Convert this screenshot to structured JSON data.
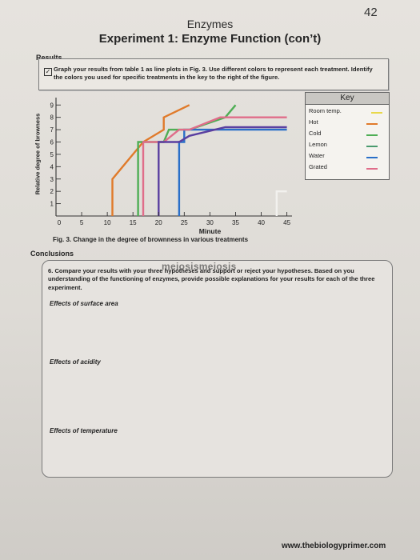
{
  "page_number": "42",
  "header_title": "Enzymes",
  "experiment_title": "Experiment 1: Enzyme Function (con’t)",
  "results": {
    "label": "Results",
    "checkbox_mark": "✓",
    "instruction": "Graph your results from table 1 as line plots in Fig. 3. Use different colors to represent each treatment. Identify the colors you used for specific treatments in the key to the right of the figure."
  },
  "chart_data": {
    "type": "line",
    "xlabel": "Minute",
    "ylabel": "Relative degree of browness",
    "x_ticks": [
      0,
      5,
      10,
      15,
      20,
      25,
      30,
      35,
      40,
      45
    ],
    "y_ticks": [
      1,
      2,
      3,
      4,
      5,
      6,
      7,
      8,
      9
    ],
    "xlim": [
      0,
      46
    ],
    "ylim": [
      0,
      9.6
    ],
    "legend_title": "Key",
    "legend_position": "right",
    "series": [
      {
        "name": "Room temp.",
        "color": "#e8d84a",
        "x": [],
        "y": []
      },
      {
        "name": "Hot",
        "color": "#e07a2a",
        "x": [
          11,
          11,
          15,
          17,
          21,
          21,
          26
        ],
        "y": [
          0,
          3,
          5,
          6,
          7,
          8,
          9
        ]
      },
      {
        "name": "Cold",
        "color": "#4fae55",
        "x": [
          16,
          16,
          21,
          22,
          26,
          33,
          35
        ],
        "y": [
          0,
          6,
          6,
          7,
          7,
          8,
          9
        ]
      },
      {
        "name": "Lemon",
        "color": "#4a9a6e",
        "x": [],
        "y": []
      },
      {
        "name": "Water",
        "color": "#2a6fc8",
        "x": [
          24,
          24,
          25,
          25,
          45
        ],
        "y": [
          0,
          6,
          6,
          7,
          7
        ]
      },
      {
        "name": "Grated",
        "color": "#e06d8a",
        "x": [
          17,
          17,
          21,
          24,
          26,
          32,
          45
        ],
        "y": [
          0,
          6,
          6,
          7,
          7,
          8,
          8
        ]
      },
      {
        "name": "",
        "color": "#5a3fa0",
        "x": [
          20,
          20,
          24,
          26,
          33,
          45
        ],
        "y": [
          0,
          6,
          6,
          6.5,
          7.2,
          7.2
        ]
      },
      {
        "name": "",
        "color": "#f2f1ee",
        "x": [
          43,
          43,
          45
        ],
        "y": [
          0,
          2,
          2
        ]
      }
    ]
  },
  "figure_caption": "Fig. 3. Change in the degree of brownness in various treatments",
  "conclusions": {
    "label": "Conclusions",
    "question": "6. Compare your results with your three hypotheses and support or reject your hypotheses. Based on you understanding of the functioning of enzymes, provide possible explanations for your results for each of the three experiment.",
    "watermark": "meiosismeiosis",
    "prompts": [
      "Effects of surface area",
      "Effects of acidity",
      "Effects of temperature"
    ]
  },
  "footer_url": "www.thebiologyprimer.com"
}
